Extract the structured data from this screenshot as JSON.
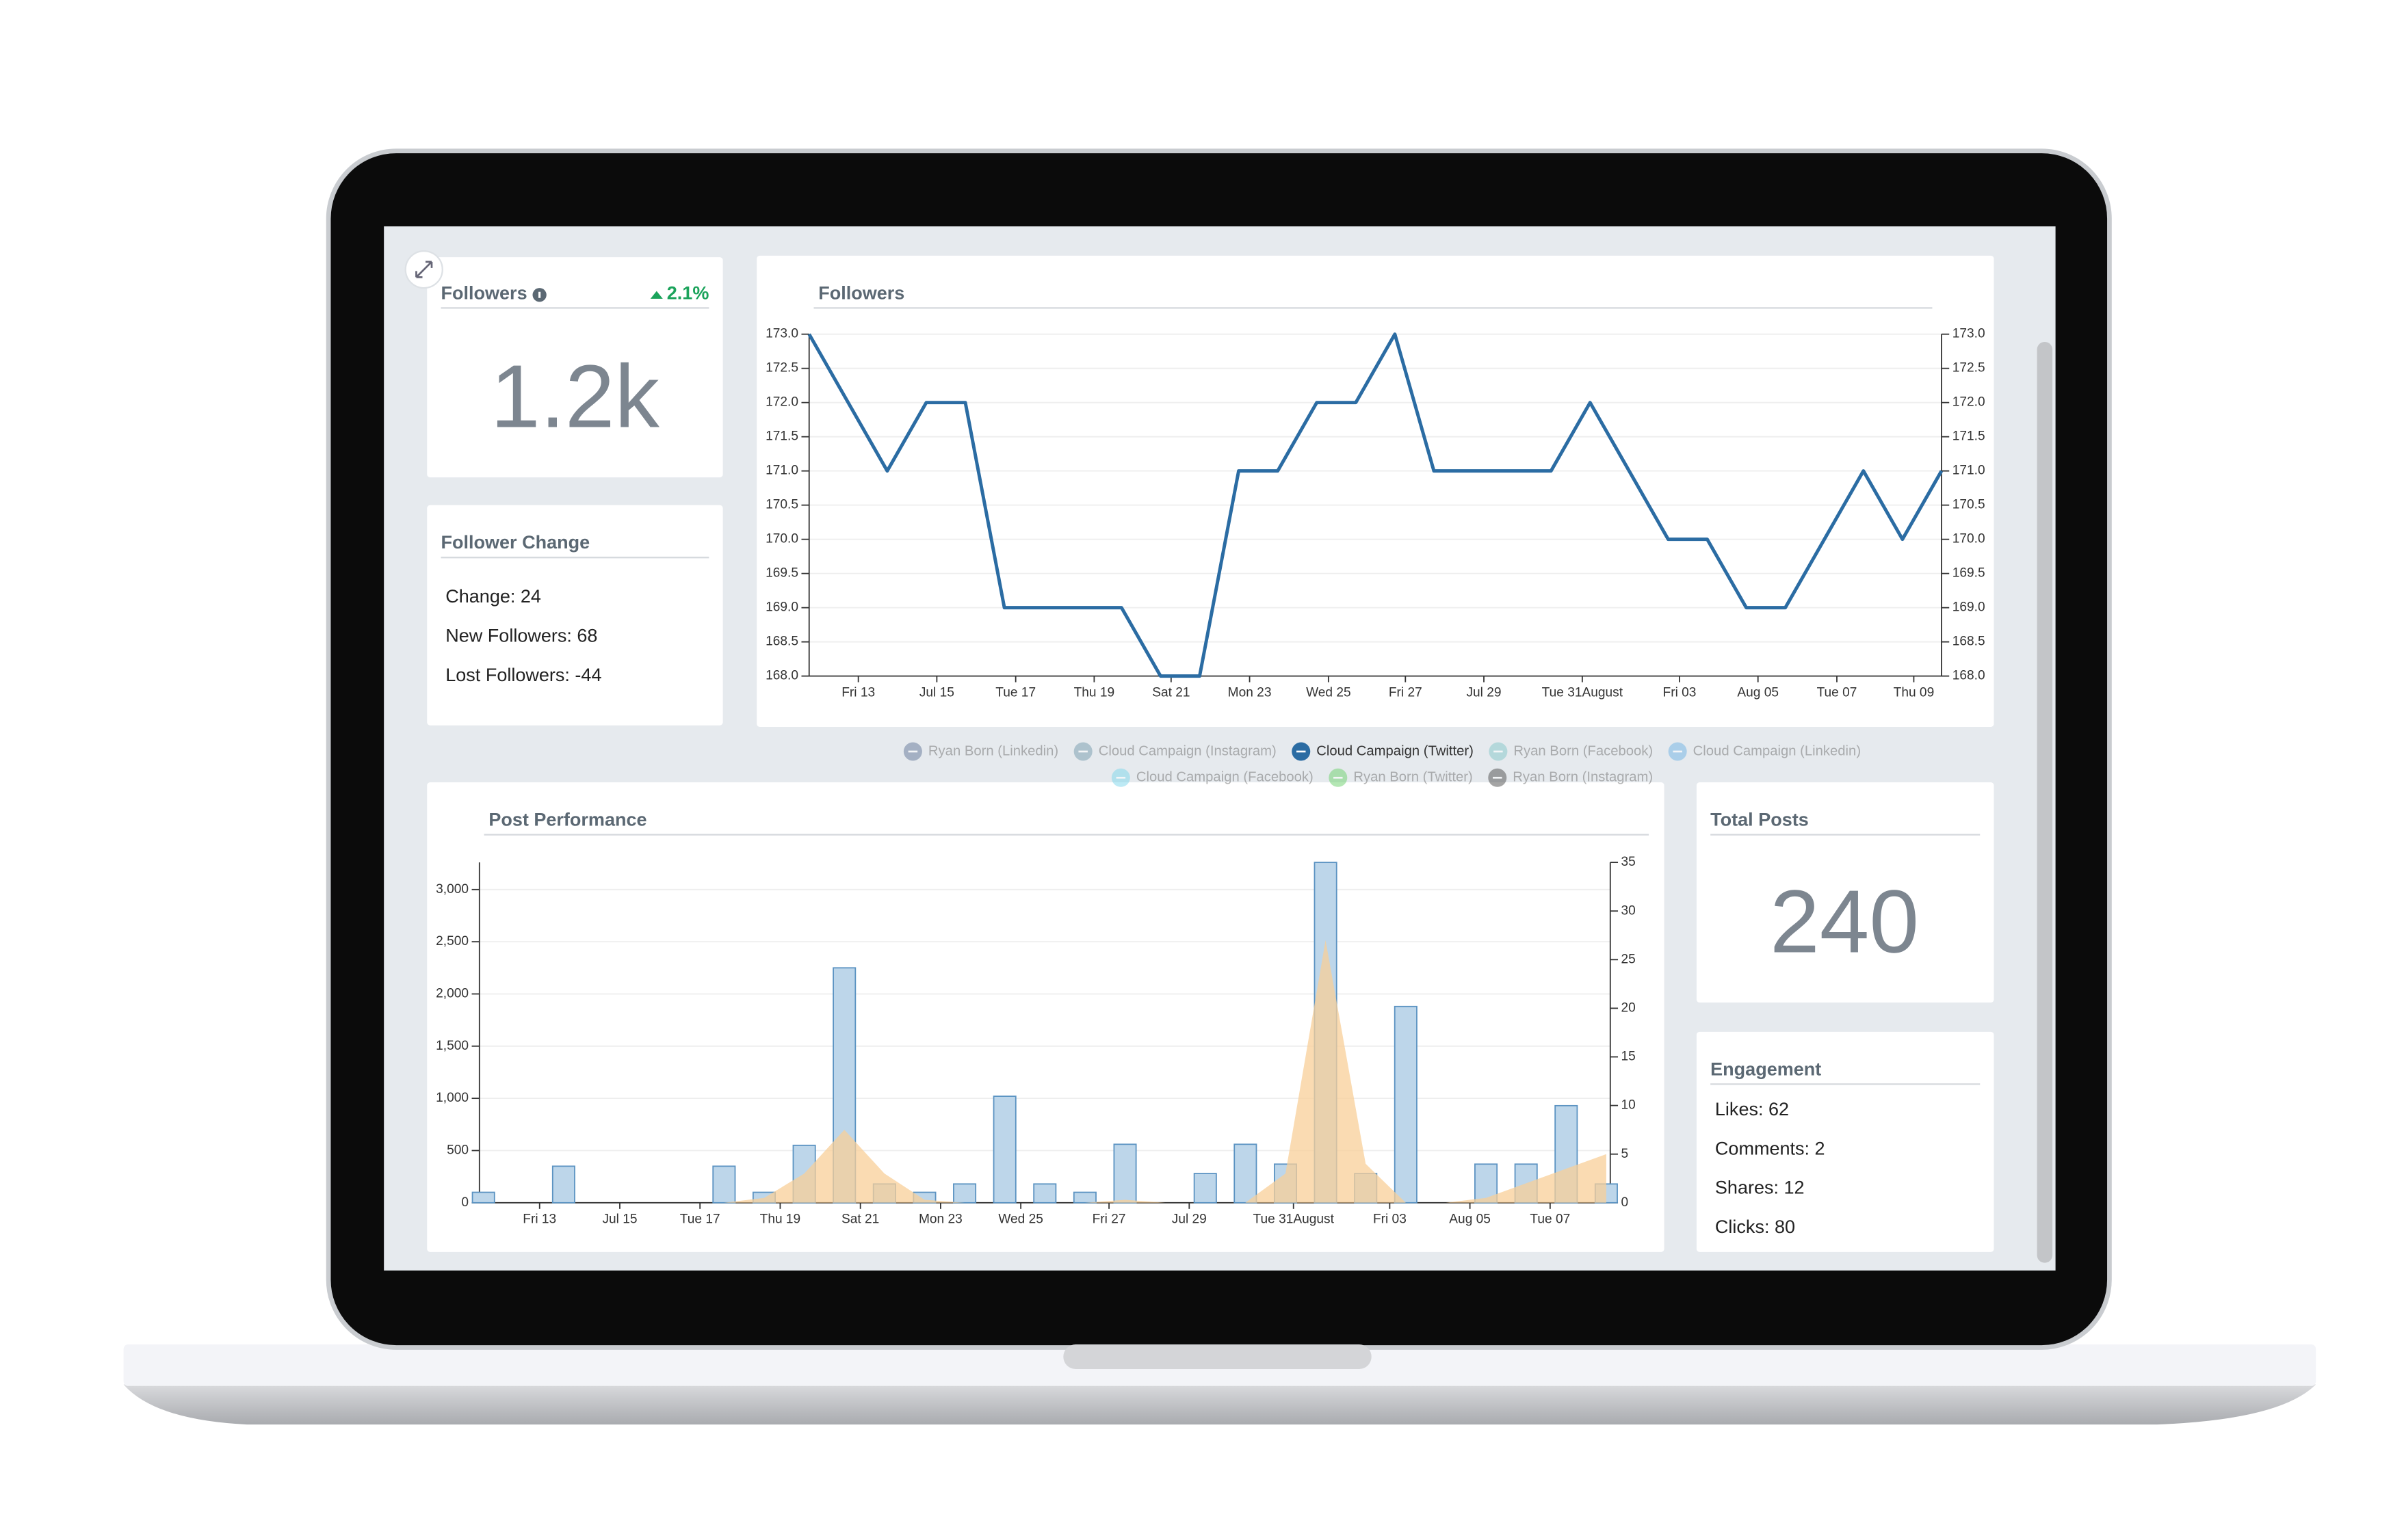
{
  "followers_card": {
    "title": "Followers",
    "change": "2.1%",
    "value": "1.2k"
  },
  "follower_change_card": {
    "title": "Follower Change",
    "items": [
      "Change: 24",
      "New Followers: 68",
      "Lost Followers: -44"
    ]
  },
  "total_posts_card": {
    "title": "Total Posts",
    "value": "240"
  },
  "engagement_card": {
    "title": "Engagement",
    "items": [
      "Likes: 62",
      "Comments: 2",
      "Shares: 12",
      "Clicks: 80"
    ]
  },
  "chart_data": [
    {
      "type": "line",
      "title": "Followers",
      "x": [
        0,
        1,
        2,
        3,
        4,
        5,
        6,
        7,
        8,
        9,
        10,
        11,
        12,
        13,
        14,
        15,
        16,
        17,
        18,
        19,
        20,
        21,
        22,
        23,
        24,
        25,
        26,
        27,
        28,
        29
      ],
      "xlim": [
        0,
        29
      ],
      "xticks": [
        {
          "value": 1.26,
          "label": "Fri 13"
        },
        {
          "value": 3.27,
          "label": "Jul 15"
        },
        {
          "value": 5.29,
          "label": "Tue 17"
        },
        {
          "value": 7.3,
          "label": "Thu 19"
        },
        {
          "value": 9.27,
          "label": "Sat 21"
        },
        {
          "value": 11.28,
          "label": "Mon 23"
        },
        {
          "value": 13.3,
          "label": "Wed 25"
        },
        {
          "value": 15.27,
          "label": "Fri 27"
        },
        {
          "value": 17.28,
          "label": "Jul 29"
        },
        {
          "value": 19.8,
          "label": "Tue 31August"
        },
        {
          "value": 22.29,
          "label": "Fri 03"
        },
        {
          "value": 24.3,
          "label": "Aug 05"
        },
        {
          "value": 26.32,
          "label": "Tue 07"
        },
        {
          "value": 28.29,
          "label": "Thu 09"
        }
      ],
      "ylim": [
        168,
        173
      ],
      "yticks": [
        {
          "value": 168,
          "label": "168.0"
        },
        168.5,
        {
          "value": 169,
          "label": "169.0"
        },
        169.5,
        {
          "value": 170,
          "label": "170.0"
        },
        170.5,
        {
          "value": 171,
          "label": "171.0"
        },
        171.5,
        {
          "value": 172,
          "label": "172.0"
        },
        172.5,
        {
          "value": 173,
          "label": "173.0"
        }
      ],
      "y2lim": [
        168,
        173
      ],
      "y2ticks": [
        {
          "value": 168,
          "label": "168.0"
        },
        168.5,
        {
          "value": 169,
          "label": "169.0"
        },
        169.5,
        {
          "value": 170,
          "label": "170.0"
        },
        170.5,
        {
          "value": 171,
          "label": "171.0"
        },
        171.5,
        {
          "value": 172,
          "label": "172.0"
        },
        172.5,
        {
          "value": 173,
          "label": "173.0"
        }
      ],
      "grid": true,
      "series": [
        {
          "name": "Ryan Born (Linkedin)",
          "color": "#6f82a0",
          "active": false
        },
        {
          "name": "Cloud Campaign (Instagram)",
          "color": "#7fa3b3",
          "active": false
        },
        {
          "name": "Cloud Campaign (Twitter)",
          "color": "#2b6ca3",
          "active": true,
          "values": [
            173,
            172,
            171,
            172,
            172,
            169,
            169,
            169,
            169,
            168,
            168,
            171,
            171,
            172,
            172,
            173,
            171,
            171,
            171,
            171,
            172,
            171,
            170,
            170,
            169,
            169,
            170,
            171,
            170,
            171
          ]
        },
        {
          "name": "Ryan Born (Facebook)",
          "color": "#8ccbcc",
          "active": false
        },
        {
          "name": "Cloud Campaign (Linkedin)",
          "color": "#7ab8e6",
          "active": false
        },
        {
          "name": "Cloud Campaign (Facebook)",
          "color": "#86d8ec",
          "active": false
        },
        {
          "name": "Ryan Born (Twitter)",
          "color": "#77d477",
          "active": false
        },
        {
          "name": "Ryan Born (Instagram)",
          "color": "#5c5c5c",
          "active": false
        }
      ]
    },
    {
      "type": "combo",
      "title": "Post Performance",
      "x": [
        0,
        1,
        2,
        3,
        4,
        5,
        6,
        7,
        8,
        9,
        10,
        11,
        12,
        13,
        14,
        15,
        16,
        17,
        18,
        19,
        20,
        21,
        22,
        23,
        24,
        25,
        26,
        27,
        28
      ],
      "xlim": [
        -0.1,
        28.1
      ],
      "xticks": [
        {
          "value": 1.4,
          "label": "Fri 13"
        },
        {
          "value": 3.4,
          "label": "Jul 15"
        },
        {
          "value": 5.4,
          "label": "Tue 17"
        },
        {
          "value": 7.4,
          "label": "Thu 19"
        },
        {
          "value": 9.4,
          "label": "Sat 21"
        },
        {
          "value": 11.4,
          "label": "Mon 23"
        },
        {
          "value": 13.4,
          "label": "Wed 25"
        },
        {
          "value": 15.6,
          "label": "Fri 27"
        },
        {
          "value": 17.6,
          "label": "Jul 29"
        },
        {
          "value": 20.2,
          "label": "Tue 31August"
        },
        {
          "value": 22.6,
          "label": "Fri 03"
        },
        {
          "value": 24.6,
          "label": "Aug 05"
        },
        {
          "value": 26.6,
          "label": "Tue 07"
        }
      ],
      "ylim": [
        0,
        3260
      ],
      "yticks": [
        0,
        500,
        {
          "value": 1000,
          "label": "1,000"
        },
        {
          "value": 1500,
          "label": "1,500"
        },
        {
          "value": 2000,
          "label": "2,000"
        },
        {
          "value": 2500,
          "label": "2,500"
        },
        {
          "value": 3000,
          "label": "3,000"
        }
      ],
      "y2lim": [
        0,
        35
      ],
      "y2ticks": [
        0,
        5,
        10,
        15,
        20,
        25,
        30,
        35
      ],
      "grid": true,
      "series": [
        {
          "type": "bar",
          "color": "#bdd6ea",
          "edge_color": "#5b93c2",
          "values": [
            100,
            0,
            350,
            0,
            0,
            0,
            350,
            100,
            550,
            2250,
            180,
            100,
            180,
            1020,
            180,
            100,
            560,
            0,
            280,
            560,
            370,
            3260,
            280,
            1880,
            0,
            370,
            370,
            930,
            180
          ]
        },
        {
          "type": "area",
          "axis": "y2",
          "color": "#f8cf98",
          "values": [
            0,
            0,
            0,
            0,
            0,
            0,
            0,
            0.5,
            3,
            7.5,
            3,
            0.3,
            0,
            0,
            0,
            0,
            0.3,
            0,
            0,
            0,
            3,
            27,
            4,
            0,
            0,
            0.5,
            2,
            3.5,
            5
          ]
        }
      ]
    }
  ]
}
